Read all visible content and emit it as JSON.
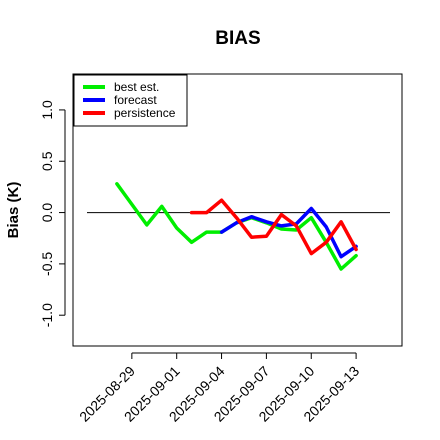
{
  "chart_data": {
    "type": "line",
    "title": "BIAS",
    "xlabel": "",
    "ylabel": "Bias (K)",
    "ylim": [
      -1.3,
      1.35
    ],
    "yticks": [
      -1.0,
      -0.5,
      0.0,
      0.5,
      1.0
    ],
    "ytick_labels": [
      "-1.0",
      "-0.5",
      "0.0",
      "0.5",
      "1.0"
    ],
    "xlim": [
      "2025-08-26",
      "2025-09-15"
    ],
    "xticks": [
      "2025-08-29",
      "2025-09-01",
      "2025-09-04",
      "2025-09-07",
      "2025-09-10",
      "2025-09-13"
    ],
    "xtick_colors": [
      "#000000",
      "#000000",
      "#228b22",
      "#000000",
      "#000000",
      "#000000"
    ],
    "reference_line": 0.0,
    "legend_position": "top-left",
    "grid": false,
    "series": [
      {
        "name": "best est.",
        "color": "#00ee00",
        "x": [
          "2025-08-28",
          "2025-08-30",
          "2025-08-31",
          "2025-09-01",
          "2025-09-02",
          "2025-09-03",
          "2025-09-04",
          "2025-09-05",
          "2025-09-06",
          "2025-09-07",
          "2025-09-08",
          "2025-09-09",
          "2025-09-10",
          "2025-09-11",
          "2025-09-12",
          "2025-09-13"
        ],
        "values": [
          0.28,
          -0.12,
          0.06,
          -0.15,
          -0.29,
          -0.19,
          -0.19,
          -0.1,
          -0.05,
          -0.1,
          -0.16,
          -0.17,
          -0.05,
          -0.29,
          -0.55,
          -0.42
        ]
      },
      {
        "name": "forecast",
        "color": "#0000ff",
        "x": [
          "2025-09-04",
          "2025-09-05",
          "2025-09-06",
          "2025-09-07",
          "2025-09-08",
          "2025-09-09",
          "2025-09-10",
          "2025-09-11",
          "2025-09-12",
          "2025-09-13"
        ],
        "values": [
          -0.19,
          -0.1,
          -0.04,
          -0.09,
          -0.13,
          -0.11,
          0.04,
          -0.14,
          -0.43,
          -0.33
        ]
      },
      {
        "name": "persistence",
        "color": "#ff0000",
        "x": [
          "2025-09-02",
          "2025-09-03",
          "2025-09-04",
          "2025-09-05",
          "2025-09-06",
          "2025-09-07",
          "2025-09-08",
          "2025-09-09",
          "2025-09-10",
          "2025-09-11",
          "2025-09-12",
          "2025-09-13"
        ],
        "values": [
          0.0,
          0.0,
          0.12,
          -0.05,
          -0.24,
          -0.23,
          -0.02,
          -0.13,
          -0.4,
          -0.29,
          -0.09,
          -0.36
        ]
      }
    ]
  }
}
